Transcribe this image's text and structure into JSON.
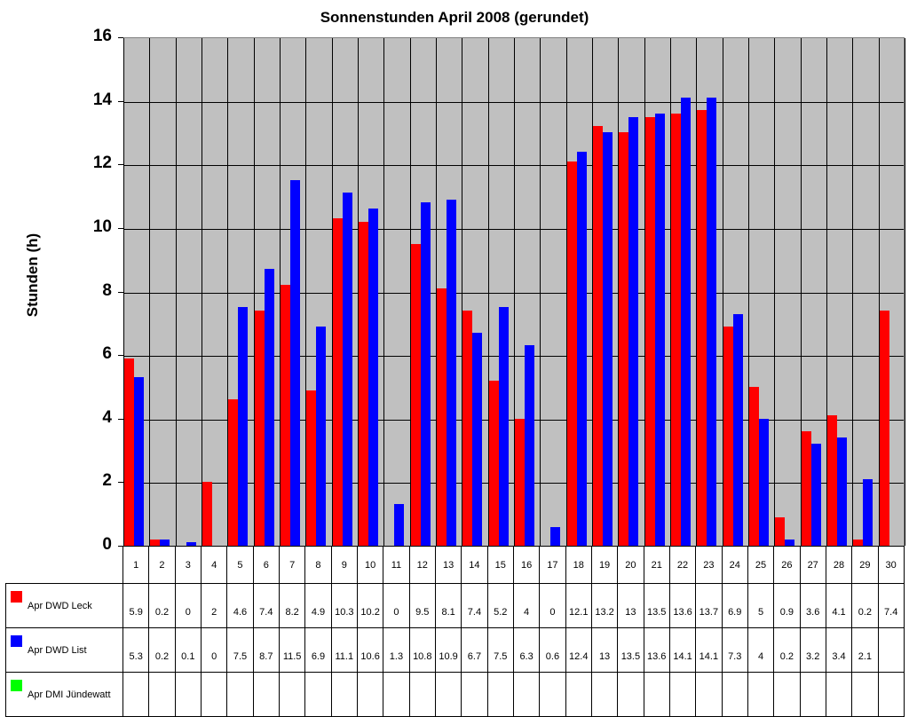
{
  "chart_data": {
    "type": "bar",
    "title": "Sonnenstunden April 2008 (gerundet)",
    "xlabel": "",
    "ylabel": "Stunden (h)",
    "ylim": [
      0,
      16
    ],
    "yticks": [
      0,
      2,
      4,
      6,
      8,
      10,
      12,
      14,
      16
    ],
    "grid": true,
    "legend_position": "data-table-left",
    "categories": [
      "1",
      "2",
      "3",
      "4",
      "5",
      "6",
      "7",
      "8",
      "9",
      "10",
      "11",
      "12",
      "13",
      "14",
      "15",
      "16",
      "17",
      "18",
      "19",
      "20",
      "21",
      "22",
      "23",
      "24",
      "25",
      "26",
      "27",
      "28",
      "29",
      "30"
    ],
    "series": [
      {
        "name": "Apr DWD Leck",
        "color": "#ff0000",
        "values": [
          5.9,
          0.2,
          0,
          2,
          4.6,
          7.4,
          8.2,
          4.9,
          10.3,
          10.2,
          0,
          9.5,
          8.1,
          7.4,
          5.2,
          4,
          0,
          12.1,
          13.2,
          13,
          13.5,
          13.6,
          13.7,
          6.9,
          5,
          0.9,
          3.6,
          4.1,
          0.2,
          7.4
        ]
      },
      {
        "name": "Apr DWD List",
        "color": "#0000ff",
        "values": [
          5.3,
          0.2,
          0.1,
          0,
          7.5,
          8.7,
          11.5,
          6.9,
          11.1,
          10.6,
          1.3,
          10.8,
          10.9,
          6.7,
          7.5,
          6.3,
          0.6,
          12.4,
          13,
          13.5,
          13.6,
          14.1,
          14.1,
          7.3,
          4,
          0.2,
          3.2,
          3.4,
          2.1,
          null
        ]
      },
      {
        "name": "Apr DMI Jündewatt",
        "color": "#00ff00",
        "values": [
          null,
          null,
          null,
          null,
          null,
          null,
          null,
          null,
          null,
          null,
          null,
          null,
          null,
          null,
          null,
          null,
          null,
          null,
          null,
          null,
          null,
          null,
          null,
          null,
          null,
          null,
          null,
          null,
          null,
          null
        ]
      }
    ]
  },
  "colors": {
    "plot_bg": "#c0c0c0",
    "grid": "#000000"
  }
}
